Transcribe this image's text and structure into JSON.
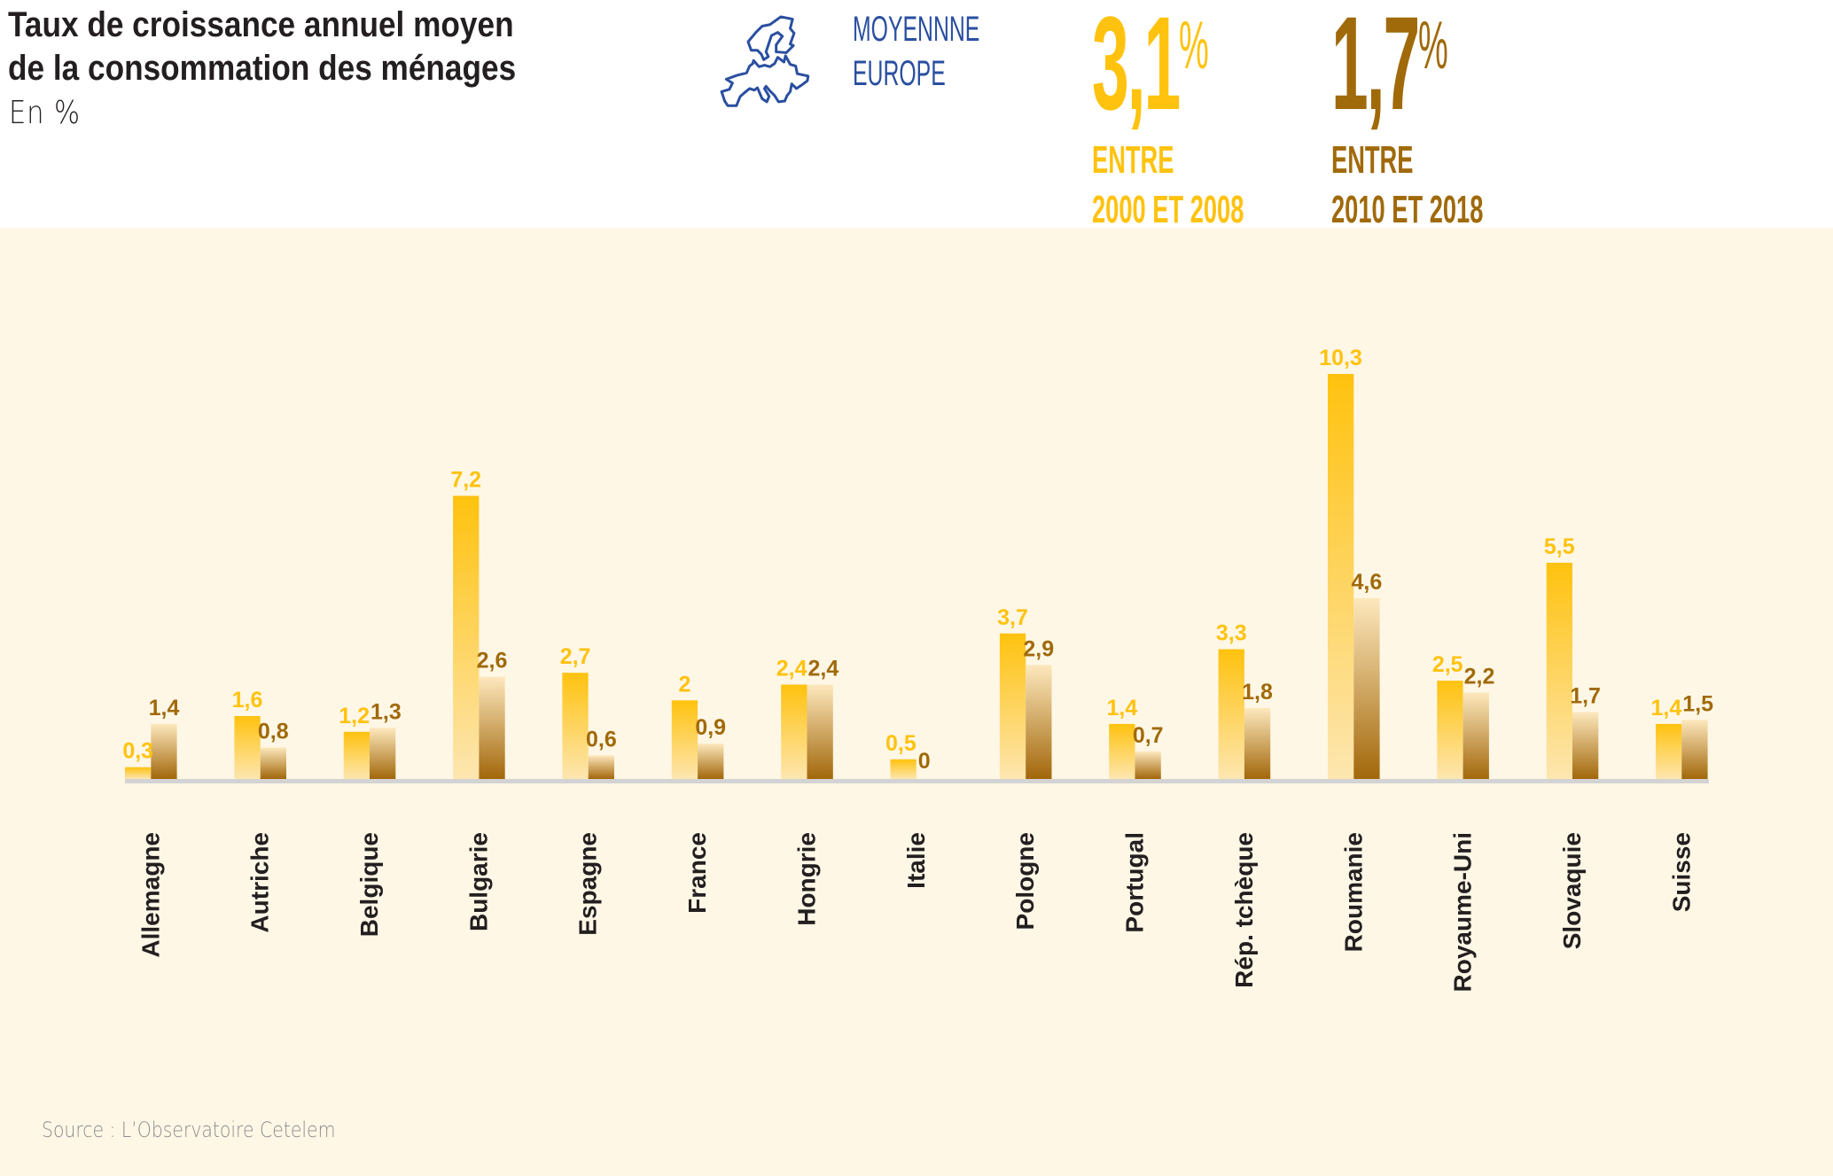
{
  "header": {
    "title_line1": "Taux de croissance annuel moyen",
    "title_line2": "de la consommation des ménages",
    "subtitle": "En %",
    "map_icon": "europe-map-outline-icon",
    "average_label_line1": "MOYENNNE",
    "average_label_line2": "EUROPE",
    "kpis": [
      {
        "value": "3,1",
        "unit": "%",
        "line1": "ENTRE",
        "line2": "2000 ET 2008",
        "color": "#ffc20e"
      },
      {
        "value": "1,7",
        "unit": "%",
        "line1": "ENTRE",
        "line2": "2010 ET 2018",
        "color": "#a06a0a"
      }
    ]
  },
  "source": "Source : L’Observatoire Cetelem",
  "colors": {
    "background_panel": "#fff7e6",
    "series1_label": "#ffc20e",
    "series2_label": "#a06a0a",
    "series1_top": "#ffc20e",
    "series1_bottom": "#fde6b0",
    "series2_top": "#fde8bd",
    "series2_bottom": "#a2670a",
    "axis": "#d3d3d3",
    "category_label": "#231f20",
    "map_stroke": "#2a4fa0"
  },
  "chart_data": {
    "type": "bar",
    "title": "Taux de croissance annuel moyen de la consommation des ménages",
    "subtitle": "En %",
    "xlabel": "",
    "ylabel": "",
    "ylim": [
      0,
      10.3
    ],
    "grid": false,
    "legend": "none (series identified by header KPIs: yellow = 2000-2008, brown = 2010-2018)",
    "categories": [
      "Allemagne",
      "Autriche",
      "Belgique",
      "Bulgarie",
      "Espagne",
      "France",
      "Hongrie",
      "Italie",
      "Pologne",
      "Portugal",
      "Rép. tchèque",
      "Roumanie",
      "Royaume-Uni",
      "Slovaquie",
      "Suisse"
    ],
    "series": [
      {
        "name": "Entre 2000 et 2008",
        "values": [
          0.3,
          1.6,
          1.2,
          7.2,
          2.7,
          2.0,
          2.4,
          0.5,
          3.7,
          1.4,
          3.3,
          10.3,
          2.5,
          5.5,
          1.4
        ],
        "labels": [
          "0,3",
          "1,6",
          "1,2",
          "7,2",
          "2,7",
          "2",
          "2,4",
          "0,5",
          "3,7",
          "1,4",
          "3,3",
          "10,3",
          "2,5",
          "5,5",
          "1,4"
        ]
      },
      {
        "name": "Entre 2010 et 2018",
        "values": [
          1.4,
          0.8,
          1.3,
          2.6,
          0.6,
          0.9,
          2.4,
          0.0,
          2.9,
          0.7,
          1.8,
          4.6,
          2.2,
          1.7,
          1.5
        ],
        "labels": [
          "1,4",
          "0,8",
          "1,3",
          "2,6",
          "0,6",
          "0,9",
          "2,4",
          "0",
          "2,9",
          "0,7",
          "1,8",
          "4,6",
          "2,2",
          "1,7",
          "1,5"
        ]
      }
    ]
  }
}
